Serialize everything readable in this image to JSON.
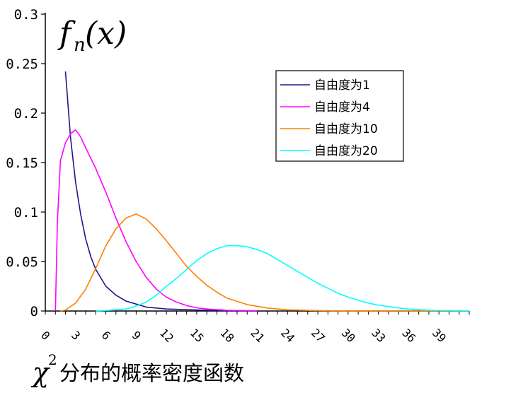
{
  "chart_data": {
    "type": "line",
    "title_main": "分布的概率密度函数",
    "title_symbol": "χ",
    "title_superscript": "2",
    "ylabel_f": "f",
    "ylabel_sub": "n",
    "ylabel_arg": "(x)",
    "xlim": [
      0,
      42
    ],
    "ylim": [
      0,
      0.3
    ],
    "x_ticks": [
      "0",
      "3",
      "6",
      "9",
      "12",
      "15",
      "18",
      "21",
      "24",
      "27",
      "30",
      "33",
      "36",
      "39"
    ],
    "y_ticks": [
      "0",
      "0.05",
      "0.1",
      "0.15",
      "0.2",
      "0.25",
      "0.3"
    ],
    "legend_position": "top-right",
    "series": [
      {
        "name": "自由度为1",
        "color": "#1a1a8c",
        "points": [
          [
            2,
            0.242
          ],
          [
            2.5,
            0.175
          ],
          [
            3,
            0.13
          ],
          [
            3.5,
            0.098
          ],
          [
            4,
            0.073
          ],
          [
            4.5,
            0.055
          ],
          [
            5,
            0.042
          ],
          [
            6,
            0.025
          ],
          [
            7,
            0.016
          ],
          [
            8,
            0.01
          ],
          [
            9,
            0.007
          ],
          [
            10,
            0.004
          ],
          [
            12,
            0.002
          ],
          [
            15,
            0.001
          ],
          [
            18,
            0.0003
          ],
          [
            21,
            0.0001
          ]
        ]
      },
      {
        "name": "自由度为4",
        "color": "#ff00ff",
        "points": [
          [
            1,
            0.0
          ],
          [
            1.2,
            0.09
          ],
          [
            1.5,
            0.152
          ],
          [
            2,
            0.17
          ],
          [
            2.5,
            0.179
          ],
          [
            3,
            0.183
          ],
          [
            3.5,
            0.176
          ],
          [
            4,
            0.165
          ],
          [
            5,
            0.144
          ],
          [
            6,
            0.12
          ],
          [
            7,
            0.094
          ],
          [
            8,
            0.07
          ],
          [
            9,
            0.05
          ],
          [
            10,
            0.034
          ],
          [
            11,
            0.022
          ],
          [
            12,
            0.014
          ],
          [
            13,
            0.009
          ],
          [
            14,
            0.0055
          ],
          [
            15,
            0.0032
          ],
          [
            16,
            0.002
          ],
          [
            18,
            0.0008
          ],
          [
            20,
            0.0003
          ],
          [
            21,
            0.0002
          ]
        ]
      },
      {
        "name": "自由度为10",
        "color": "#ff8000",
        "points": [
          [
            1.5,
            0.0
          ],
          [
            2,
            0.001
          ],
          [
            3,
            0.008
          ],
          [
            4,
            0.022
          ],
          [
            5,
            0.043
          ],
          [
            6,
            0.066
          ],
          [
            7,
            0.083
          ],
          [
            8,
            0.094
          ],
          [
            9,
            0.098
          ],
          [
            10,
            0.093
          ],
          [
            11,
            0.083
          ],
          [
            12,
            0.071
          ],
          [
            13,
            0.058
          ],
          [
            14,
            0.045
          ],
          [
            15,
            0.035
          ],
          [
            16,
            0.026
          ],
          [
            17,
            0.019
          ],
          [
            18,
            0.013
          ],
          [
            20,
            0.0065
          ],
          [
            22,
            0.003
          ],
          [
            24,
            0.0012
          ],
          [
            27,
            0.0004
          ],
          [
            30,
            0.0001
          ],
          [
            33,
            0.0
          ],
          [
            36,
            0.0
          ],
          [
            39,
            0.0
          ],
          [
            42,
            0.0
          ]
        ]
      },
      {
        "name": "自由度为20",
        "color": "#00ffff",
        "points": [
          [
            5,
            0.0
          ],
          [
            6,
            0.0005
          ],
          [
            8,
            0.002
          ],
          [
            9,
            0.005
          ],
          [
            10,
            0.009
          ],
          [
            11,
            0.016
          ],
          [
            12,
            0.025
          ],
          [
            13,
            0.033
          ],
          [
            14,
            0.042
          ],
          [
            15,
            0.051
          ],
          [
            16,
            0.058
          ],
          [
            17,
            0.063
          ],
          [
            18,
            0.066
          ],
          [
            19,
            0.066
          ],
          [
            20,
            0.065
          ],
          [
            21,
            0.062
          ],
          [
            22,
            0.058
          ],
          [
            23,
            0.052
          ],
          [
            24,
            0.046
          ],
          [
            25,
            0.04
          ],
          [
            26,
            0.034
          ],
          [
            27,
            0.028
          ],
          [
            28,
            0.023
          ],
          [
            29,
            0.018
          ],
          [
            30,
            0.014
          ],
          [
            31,
            0.011
          ],
          [
            32,
            0.008
          ],
          [
            33,
            0.006
          ],
          [
            34,
            0.0045
          ],
          [
            35,
            0.003
          ],
          [
            36,
            0.002
          ],
          [
            37,
            0.0013
          ],
          [
            38,
            0.0008
          ],
          [
            39,
            0.0005
          ],
          [
            40,
            0.0003
          ],
          [
            42,
            0.0001
          ]
        ]
      }
    ]
  }
}
